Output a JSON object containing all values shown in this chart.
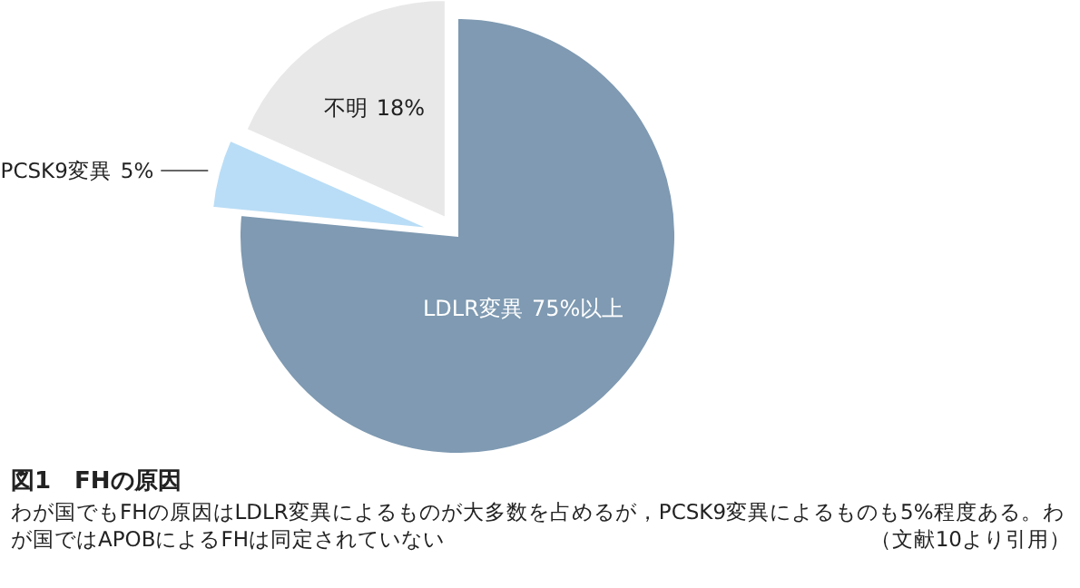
{
  "chart_data": {
    "type": "pie",
    "title": "図1　FHの原因",
    "subtitle": "わが国でもFHの原因はLDLR変異によるものが大多数を占めるが，PCSK9変異によるものも5%程度ある。わが国ではAPOBによるFHは同定されていない",
    "categories": [
      "LDLR変異",
      "PCSK9変異",
      "不明"
    ],
    "values": [
      75,
      5,
      18
    ],
    "value_labels": [
      "75%以上",
      "5%",
      "18%"
    ],
    "colors": [
      "#7f9ab2",
      "#b9ddf6",
      "#e8e8e8"
    ],
    "annotations": [
      "（文献10より引用）"
    ]
  }
}
